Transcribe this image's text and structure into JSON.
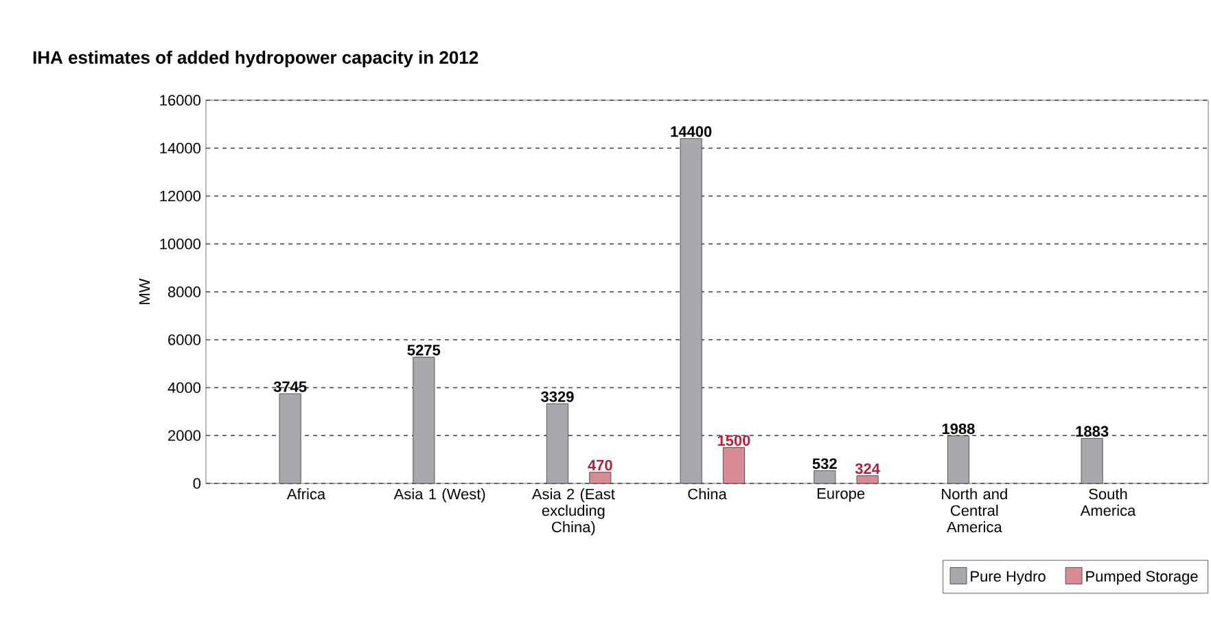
{
  "chart_data": {
    "type": "bar",
    "title": "IHA estimates of added hydropower capacity in 2012",
    "ylabel": "MW",
    "categories": [
      "Africa",
      "Asia 1 (West)",
      "Asia 2 (East excluding China)",
      "China",
      "Europe",
      "North and Central America",
      "South America"
    ],
    "series": [
      {
        "name": "Pure Hydro",
        "color": "#a7a9ac",
        "values": [
          3745,
          5275,
          3329,
          14400,
          532,
          1988,
          1883
        ]
      },
      {
        "name": "Pumped Storage",
        "color": "#d98b95",
        "values": [
          null,
          null,
          470,
          1500,
          324,
          null,
          null
        ]
      }
    ],
    "ylim": [
      0,
      16000
    ],
    "yticks": [
      0,
      2000,
      4000,
      6000,
      8000,
      10000,
      12000,
      14000,
      16000
    ],
    "grid": "y",
    "legend": "bottom right",
    "data_labels": true
  }
}
